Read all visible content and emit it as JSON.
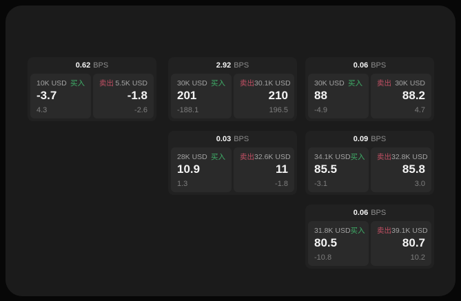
{
  "labels": {
    "bps_unit": "BPS",
    "buy": "买入",
    "sell": "卖出"
  },
  "colors": {
    "buy": "#3fae68",
    "sell": "#c04f63",
    "window_bg": "#1b1b1b",
    "card_bg": "#212121",
    "panel_bg": "#2a2a2a"
  },
  "cards": [
    {
      "bps": "0.62",
      "col": 0,
      "row": 0,
      "buy": {
        "amount": "10K USD",
        "value": "-3.7",
        "sub": "4.3"
      },
      "sell": {
        "amount": "5.5K USD",
        "value": "-1.8",
        "sub": "-2.6"
      }
    },
    {
      "bps": "2.92",
      "col": 1,
      "row": 0,
      "buy": {
        "amount": "30K USD",
        "value": "201",
        "sub": "-188.1"
      },
      "sell": {
        "amount": "30.1K USD",
        "value": "210",
        "sub": "196.5"
      }
    },
    {
      "bps": "0.06",
      "col": 2,
      "row": 0,
      "buy": {
        "amount": "30K USD",
        "value": "88",
        "sub": "-4.9"
      },
      "sell": {
        "amount": "30K USD",
        "value": "88.2",
        "sub": "4.7"
      }
    },
    {
      "bps": "0.03",
      "col": 1,
      "row": 1,
      "buy": {
        "amount": "28K USD",
        "value": "10.9",
        "sub": "1.3"
      },
      "sell": {
        "amount": "32.6K USD",
        "value": "11",
        "sub": "-1.8"
      }
    },
    {
      "bps": "0.09",
      "col": 2,
      "row": 1,
      "buy": {
        "amount": "34.1K USD",
        "value": "85.5",
        "sub": "-3.1"
      },
      "sell": {
        "amount": "32.8K USD",
        "value": "85.8",
        "sub": "3.0"
      }
    },
    {
      "bps": "0.06",
      "col": 2,
      "row": 2,
      "buy": {
        "amount": "31.8K USD",
        "value": "80.5",
        "sub": "-10.8"
      },
      "sell": {
        "amount": "39.1K USD",
        "value": "80.7",
        "sub": "10.2"
      }
    }
  ]
}
